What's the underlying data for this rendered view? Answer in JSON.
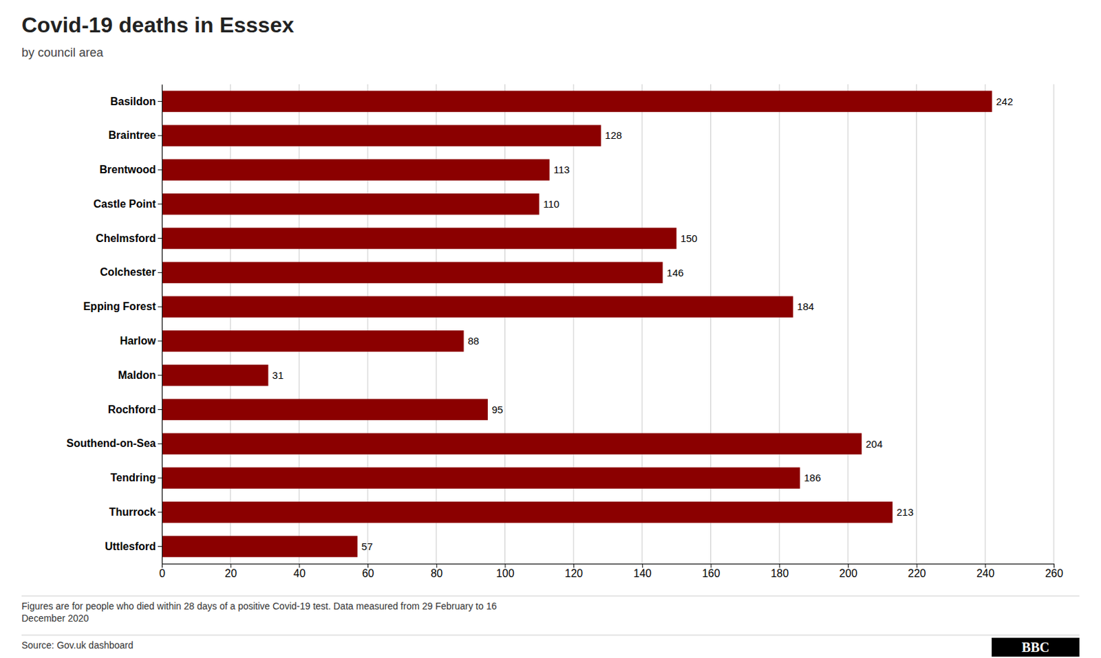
{
  "chart_data": {
    "type": "bar",
    "orientation": "horizontal",
    "title": "Covid-19 deaths in Esssex",
    "subtitle": "by council area",
    "categories": [
      "Basildon",
      "Braintree",
      "Brentwood",
      "Castle Point",
      "Chelmsford",
      "Colchester",
      "Epping Forest",
      "Harlow",
      "Maldon",
      "Rochford",
      "Southend-on-Sea",
      "Tendring",
      "Thurrock",
      "Uttlesford"
    ],
    "values": [
      242,
      128,
      113,
      110,
      150,
      146,
      184,
      88,
      31,
      95,
      204,
      186,
      213,
      57
    ],
    "color": "#8B0000",
    "xlim": [
      0,
      260
    ],
    "xticks": [
      0,
      20,
      40,
      60,
      80,
      100,
      120,
      140,
      160,
      180,
      200,
      220,
      240,
      260
    ],
    "grid": true,
    "data_labels": true,
    "annotations": [
      "Figures are for people who died within 28 days of a positive Covid-19 test. Data measured from 29 February to 16\nDecember 2020",
      "Source: Gov.uk dashboard",
      "BBC"
    ]
  }
}
